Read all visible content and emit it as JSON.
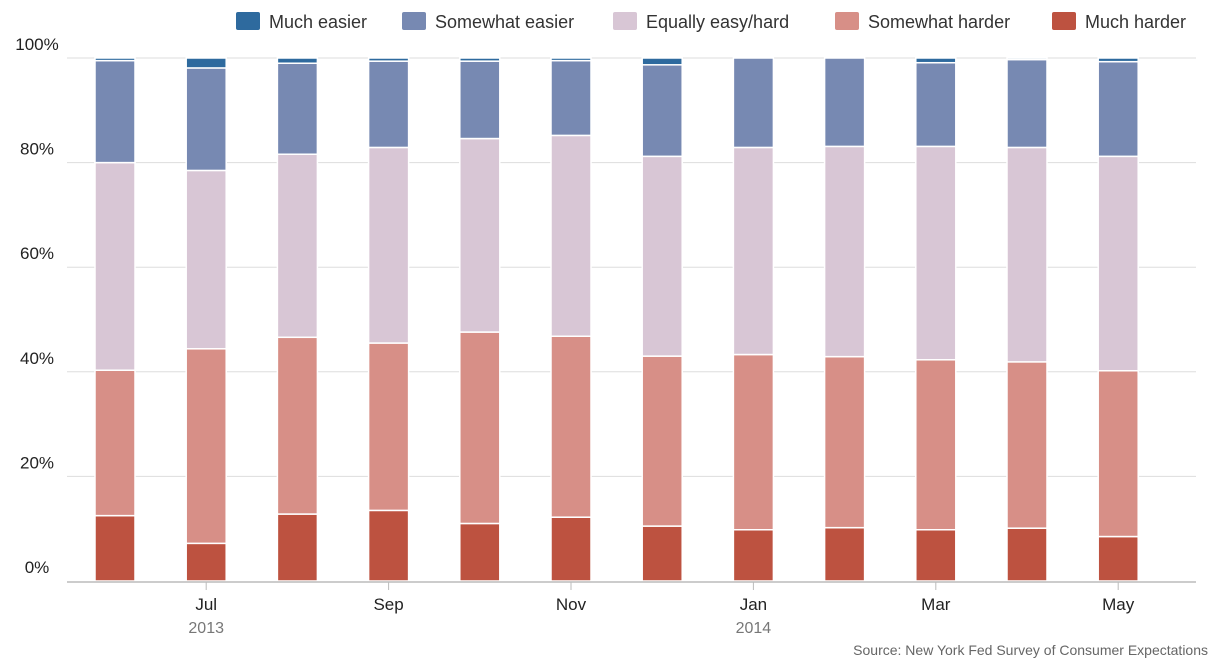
{
  "colors": {
    "much_easier": "#2e6a9e",
    "somewhat_easier": "#7789b2",
    "equally": "#d8c6d5",
    "somewhat_harder": "#d78f87",
    "much_harder": "#bd5240",
    "grid": "#dddddd",
    "axis": "#bbbbbb"
  },
  "source": "Source: New York Fed Survey of Consumer Expectations",
  "chart_data": {
    "type": "bar",
    "stacked": true,
    "categories": [
      "Jun 2013",
      "Jul 2013",
      "Aug 2013",
      "Sep 2013",
      "Oct 2013",
      "Nov 2013",
      "Dec 2013",
      "Jan 2014",
      "Feb 2014",
      "Mar 2014",
      "Apr 2014",
      "May 2014"
    ],
    "x_tick_labels": [
      {
        "category": "Jul 2013",
        "month": "Jul",
        "year": "2013"
      },
      {
        "category": "Sep 2013",
        "month": "Sep",
        "year": ""
      },
      {
        "category": "Nov 2013",
        "month": "Nov",
        "year": ""
      },
      {
        "category": "Jan 2014",
        "month": "Jan",
        "year": "2014"
      },
      {
        "category": "Mar 2014",
        "month": "Mar",
        "year": ""
      },
      {
        "category": "May 2014",
        "month": "May",
        "year": ""
      }
    ],
    "y_tick_labels": [
      "0%",
      "20%",
      "40%",
      "60%",
      "80%",
      "100%"
    ],
    "ylim": [
      0,
      100
    ],
    "grid": true,
    "legend_position": "top",
    "series": [
      {
        "name": "Much harder",
        "color_key": "much_harder",
        "values": [
          12.5,
          7.2,
          12.8,
          13.5,
          11.0,
          12.2,
          10.5,
          9.8,
          10.2,
          9.8,
          10.1,
          8.5
        ]
      },
      {
        "name": "Somewhat harder",
        "color_key": "somewhat_harder",
        "values": [
          27.8,
          37.2,
          33.8,
          32.0,
          36.6,
          34.6,
          32.5,
          33.5,
          32.7,
          32.5,
          31.8,
          31.7
        ]
      },
      {
        "name": "Equally easy/hard",
        "color_key": "equally",
        "values": [
          39.7,
          34.1,
          35.0,
          37.4,
          37.0,
          38.4,
          38.2,
          39.6,
          40.2,
          40.8,
          41.0,
          41.0
        ]
      },
      {
        "name": "Somewhat easier",
        "color_key": "somewhat_easier",
        "values": [
          19.5,
          19.6,
          17.4,
          16.5,
          14.8,
          14.3,
          17.5,
          17.1,
          16.9,
          16.0,
          16.8,
          18.1
        ]
      },
      {
        "name": "Much easier",
        "color_key": "much_easier",
        "values": [
          0.5,
          1.9,
          1.0,
          0.6,
          0.6,
          0.5,
          1.3,
          0.0,
          0.0,
          0.9,
          0.3,
          0.7
        ]
      }
    ],
    "legend_order": [
      "Much easier",
      "Somewhat easier",
      "Equally easy/hard",
      "Somewhat harder",
      "Much harder"
    ]
  }
}
